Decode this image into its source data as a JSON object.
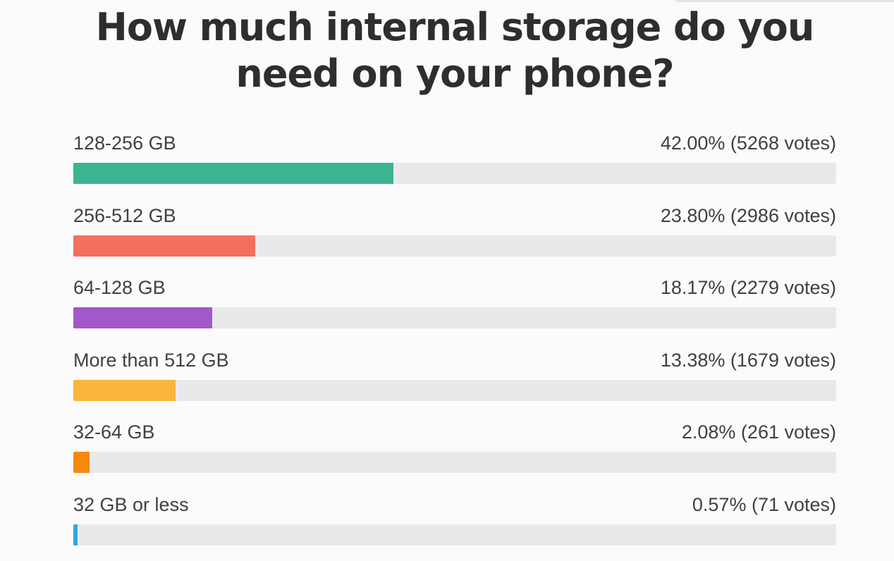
{
  "poll": {
    "title": "How much internal storage do you need on your phone?"
  },
  "chart_data": {
    "type": "bar",
    "orientation": "horizontal",
    "title": "How much internal storage do you need on your phone?",
    "categories": [
      "128-256 GB",
      "256-512 GB",
      "64-128 GB",
      "More than 512 GB",
      "32-64 GB",
      "32 GB or less"
    ],
    "values": [
      42.0,
      23.8,
      18.17,
      13.38,
      2.08,
      0.57
    ],
    "votes": [
      5268,
      2986,
      2279,
      1679,
      261,
      71
    ],
    "xlim": [
      0,
      100
    ],
    "grid": false,
    "legend": "none"
  },
  "rows": [
    {
      "label": "128-256 GB",
      "result": "42.00% (5268 votes)",
      "percent": 42.0,
      "color": "#3cb391"
    },
    {
      "label": "256-512 GB",
      "result": "23.80% (2986 votes)",
      "percent": 23.8,
      "color": "#f46f5e"
    },
    {
      "label": "64-128 GB",
      "result": "18.17% (2279 votes)",
      "percent": 18.17,
      "color": "#a259c8"
    },
    {
      "label": "More than 512 GB",
      "result": "13.38% (1679 votes)",
      "percent": 13.38,
      "color": "#fbb53c"
    },
    {
      "label": "32-64 GB",
      "result": "2.08% (261 votes)",
      "percent": 2.08,
      "color": "#f7880e"
    },
    {
      "label": "32 GB or less",
      "result": "0.57% (71 votes)",
      "percent": 0.57,
      "color": "#2ea8d6"
    }
  ]
}
